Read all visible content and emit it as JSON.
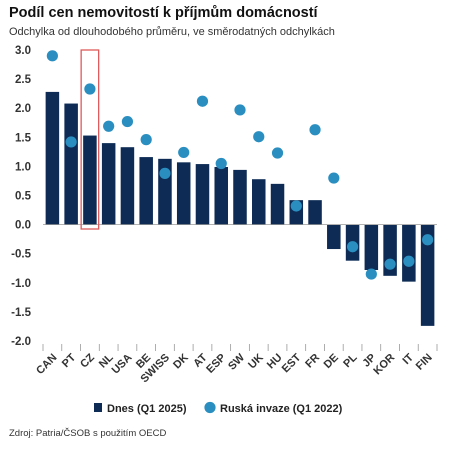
{
  "title": "Podíl cen nemovitostí k příjmům domácností",
  "subtitle": "Odchylka od dlouhodobého průměru, ve směrodatných odchylkách",
  "source": "Zdroj: Patria/ČSOB s použitím OECD",
  "colors": {
    "bar": "#0d2b55",
    "dot": "#2a8fc0",
    "highlight": "#e05a5a",
    "axis": "#999999"
  },
  "chart_data": {
    "type": "bar",
    "categories": [
      "CAN",
      "PT",
      "CZ",
      "NL",
      "USA",
      "BE",
      "SWISS",
      "DK",
      "AT",
      "ESP",
      "SW",
      "UK",
      "HU",
      "EST",
      "FR",
      "DE",
      "PL",
      "JP",
      "KOR",
      "IT",
      "FIN"
    ],
    "series": [
      {
        "name": "Dnes (Q1 2025)",
        "kind": "bar",
        "values": [
          2.28,
          2.08,
          1.53,
          1.4,
          1.33,
          1.16,
          1.13,
          1.07,
          1.04,
          0.99,
          0.94,
          0.78,
          0.7,
          0.42,
          0.42,
          -0.42,
          -0.62,
          -0.78,
          -0.88,
          -0.98,
          -1.74
        ]
      },
      {
        "name": "Ruská invaze (Q1 2022)",
        "kind": "scatter",
        "values": [
          2.9,
          1.42,
          2.33,
          1.69,
          1.77,
          1.46,
          0.88,
          1.24,
          2.12,
          1.05,
          1.97,
          1.51,
          1.23,
          0.32,
          1.63,
          0.8,
          -0.38,
          -0.85,
          -0.68,
          -0.63,
          -0.26
        ]
      }
    ],
    "highlight_category": "CZ",
    "ylim": [
      -2.0,
      3.0
    ],
    "yticks": [
      "3.0",
      "2.5",
      "2.0",
      "1.5",
      "1.0",
      "0.5",
      "0.0",
      "-0.5",
      "-1.0",
      "-1.5",
      "-2.0"
    ],
    "ytick_values": [
      3.0,
      2.5,
      2.0,
      1.5,
      1.0,
      0.5,
      0.0,
      -0.5,
      -1.0,
      -1.5,
      -2.0
    ],
    "grid": false,
    "legend": "bottom"
  }
}
